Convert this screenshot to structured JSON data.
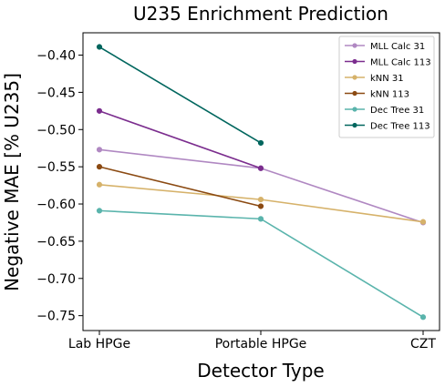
{
  "chart_data": {
    "type": "line",
    "title": "U235 Enrichment Prediction",
    "xlabel": "Detector Type",
    "ylabel": "Negative MAE [% U235]",
    "categories": [
      "Lab HPGe",
      "Portable HPGe",
      "CZT"
    ],
    "ylim": [
      -0.77,
      -0.37
    ],
    "yticks": [
      -0.4,
      -0.45,
      -0.5,
      -0.55,
      -0.6,
      -0.65,
      -0.7,
      -0.75
    ],
    "ytick_labels": [
      "−0.40",
      "−0.45",
      "−0.50",
      "−0.55",
      "−0.60",
      "−0.65",
      "−0.70",
      "−0.75"
    ],
    "grid": false,
    "legend_position": "top-right",
    "series": [
      {
        "name": "MLL Calc 31",
        "color": "#b088c2",
        "values": [
          -0.527,
          -0.552,
          -0.625
        ]
      },
      {
        "name": "MLL Calc 113",
        "color": "#7b2d8e",
        "values": [
          -0.475,
          -0.552,
          null
        ]
      },
      {
        "name": "kNN 31",
        "color": "#d6b26a",
        "values": [
          -0.574,
          -0.594,
          -0.624
        ]
      },
      {
        "name": "kNN 113",
        "color": "#8b4a12",
        "values": [
          -0.55,
          -0.603,
          null
        ]
      },
      {
        "name": "Dec Tree 31",
        "color": "#5ab4ac",
        "values": [
          -0.609,
          -0.62,
          -0.752
        ]
      },
      {
        "name": "Dec Tree 113",
        "color": "#01665e",
        "values": [
          -0.389,
          -0.518,
          null
        ]
      }
    ]
  }
}
